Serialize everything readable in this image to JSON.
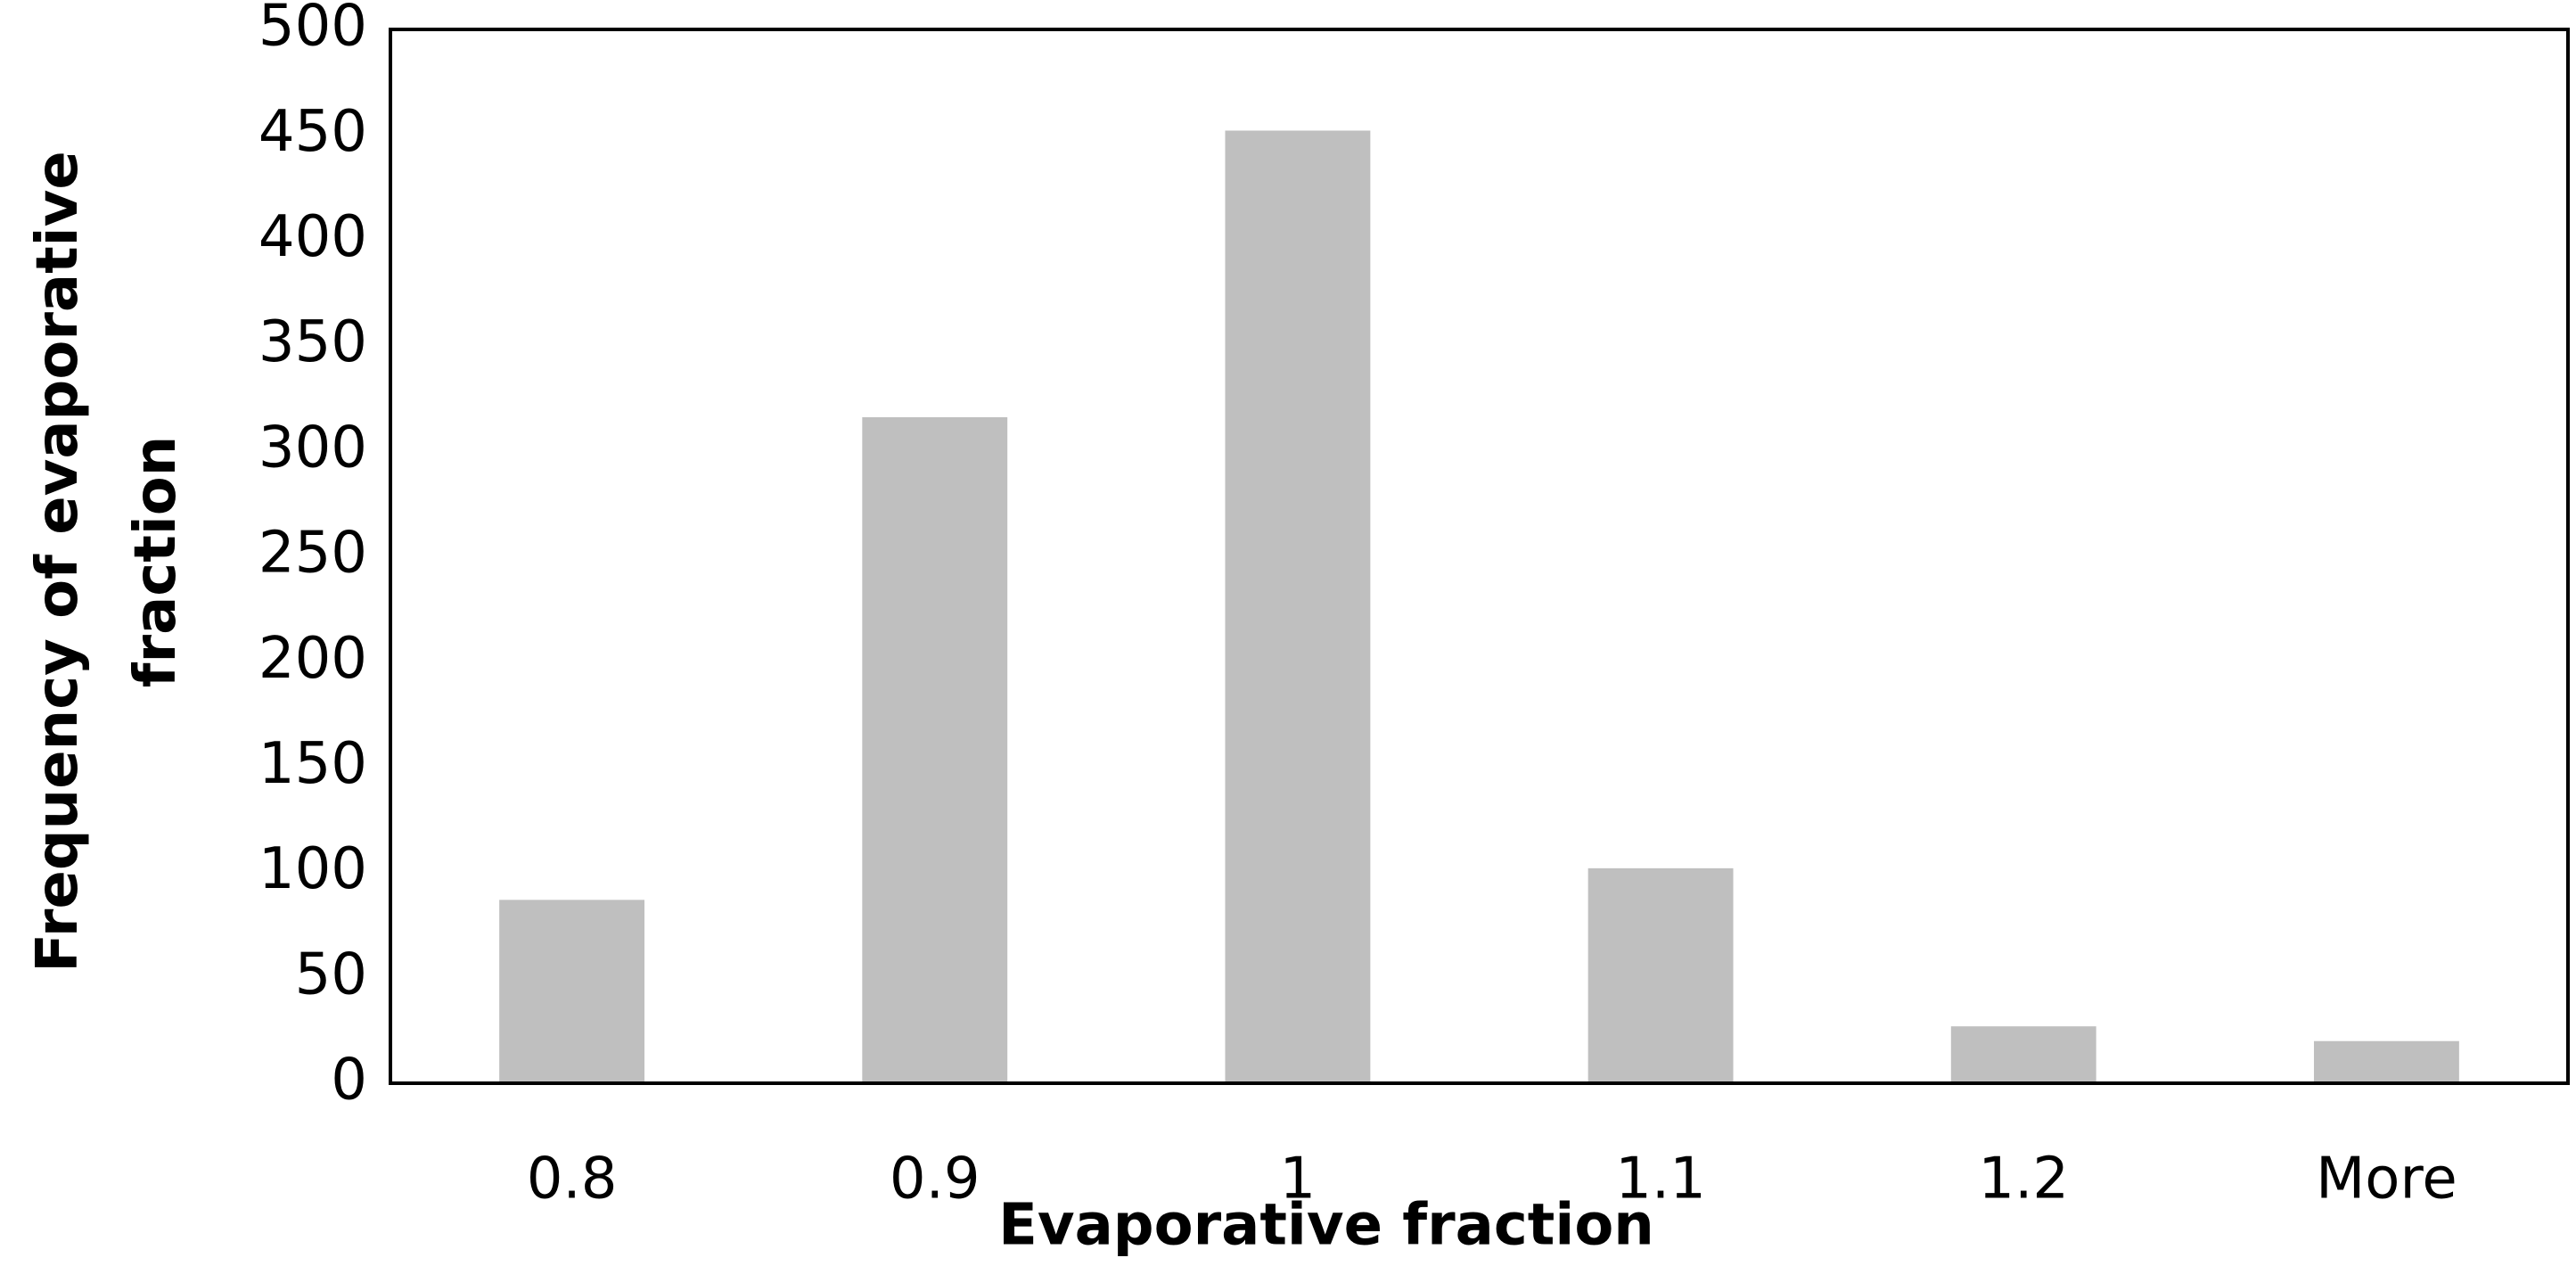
{
  "chart_data": {
    "type": "bar",
    "xlabel": "Evaporative fraction",
    "ylabel": "Frequency of evaporative fraction",
    "categories": [
      "0.8",
      "0.9",
      "1",
      "1.1",
      "1.2",
      "More"
    ],
    "values": [
      87,
      316,
      452,
      102,
      27,
      20
    ],
    "color": "#bfbfbf",
    "ylim": [
      0,
      500
    ],
    "yticks": [
      0,
      50,
      100,
      150,
      200,
      250,
      300,
      350,
      400,
      450,
      500
    ],
    "grid": false
  }
}
